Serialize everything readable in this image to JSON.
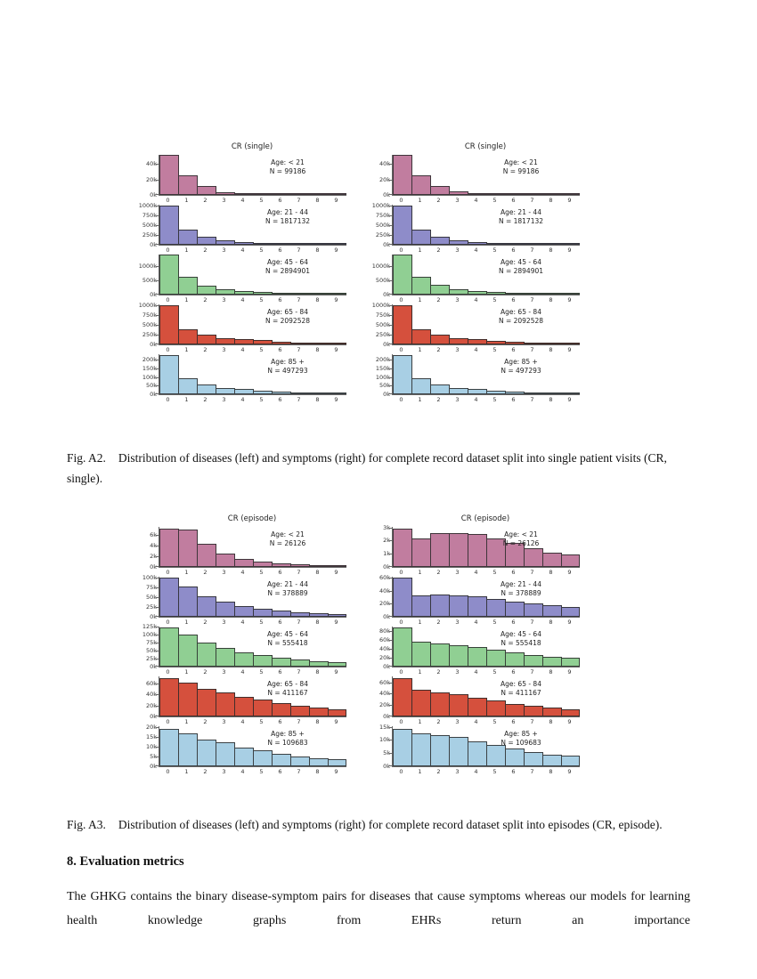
{
  "captions": {
    "a2": {
      "label": "Fig. A2.",
      "text": "Distribution of diseases (left) and symptoms (right) for complete record dataset split into single patient visits (CR, single)."
    },
    "a3": {
      "label": "Fig. A3.",
      "text": "Distribution of diseases (left) and symptoms (right) for complete record dataset split into episodes (CR, episode)."
    }
  },
  "section": {
    "heading": "8.  Evaluation metrics",
    "body": "The GHKG contains the binary disease-symptom pairs for diseases that cause symptoms whereas our models for learning health knowledge graphs from EHRs return an importance"
  },
  "chart_data": [
    {
      "id": "fig-a2",
      "type": "bar",
      "title": "CR (single)",
      "unit": "thousands",
      "x_labels": [
        "0",
        "1",
        "2",
        "3",
        "4",
        "5",
        "6",
        "7",
        "8",
        "9"
      ],
      "columns": [
        {
          "side": "diseases (left)",
          "panels": [
            {
              "age_label": "Age: < 21",
              "n_label": "N = 99186",
              "color": "#c17d9f",
              "ymax": 52,
              "yticks": [
                {
                  "v": 0,
                  "label": "0k"
                },
                {
                  "v": 20,
                  "label": "20k"
                },
                {
                  "v": 40,
                  "label": "40k"
                }
              ],
              "values": [
                52,
                25,
                11,
                4,
                1.6,
                0.9,
                0.5,
                0.3,
                0.2,
                0.1
              ]
            },
            {
              "age_label": "Age: 21 - 44",
              "n_label": "N = 1817132",
              "color": "#8e8cc9",
              "ymax": 1020,
              "yticks": [
                {
                  "v": 0,
                  "label": "0k"
                },
                {
                  "v": 250,
                  "label": "250k"
                },
                {
                  "v": 500,
                  "label": "500k"
                },
                {
                  "v": 750,
                  "label": "750k"
                },
                {
                  "v": 1000,
                  "label": "1000k"
                }
              ],
              "values": [
                1000,
                390,
                200,
                118,
                72,
                46,
                28,
                17,
                9,
                4
              ]
            },
            {
              "age_label": "Age: 45 - 64",
              "n_label": "N = 2894901",
              "color": "#90cf93",
              "ymax": 1400,
              "yticks": [
                {
                  "v": 0,
                  "label": "0k"
                },
                {
                  "v": 500,
                  "label": "500k"
                },
                {
                  "v": 1000,
                  "label": "1000k"
                }
              ],
              "values": [
                1400,
                610,
                320,
                198,
                130,
                90,
                58,
                36,
                20,
                10
              ]
            },
            {
              "age_label": "Age: 65 - 84",
              "n_label": "N = 2092528",
              "color": "#d5503d",
              "ymax": 1020,
              "yticks": [
                {
                  "v": 0,
                  "label": "0k"
                },
                {
                  "v": 250,
                  "label": "250k"
                },
                {
                  "v": 500,
                  "label": "500k"
                },
                {
                  "v": 750,
                  "label": "750k"
                },
                {
                  "v": 1000,
                  "label": "1000k"
                }
              ],
              "values": [
                995,
                390,
                245,
                165,
                132,
                102,
                70,
                48,
                29,
                17
              ]
            },
            {
              "age_label": "Age: 85 +",
              "n_label": "N = 497293",
              "color": "#a8cfe4",
              "ymax": 232,
              "yticks": [
                {
                  "v": 0,
                  "label": "0k"
                },
                {
                  "v": 50,
                  "label": "50k"
                },
                {
                  "v": 100,
                  "label": "100k"
                },
                {
                  "v": 150,
                  "label": "150k"
                },
                {
                  "v": 200,
                  "label": "200k"
                }
              ],
              "values": [
                228,
                92,
                58,
                38,
                30,
                22,
                17,
                12,
                8,
                5
              ]
            }
          ]
        },
        {
          "side": "symptoms (right)",
          "panels": [
            {
              "age_label": "Age: < 21",
              "n_label": "N = 99186",
              "color": "#c17d9f",
              "ymax": 52,
              "yticks": [
                {
                  "v": 0,
                  "label": "0k"
                },
                {
                  "v": 20,
                  "label": "20k"
                },
                {
                  "v": 40,
                  "label": "40k"
                }
              ],
              "values": [
                52,
                25,
                11,
                4.2,
                1.9,
                1.1,
                0.6,
                0.4,
                0.25,
                0.12
              ]
            },
            {
              "age_label": "Age: 21 - 44",
              "n_label": "N = 1817132",
              "color": "#8e8cc9",
              "ymax": 1020,
              "yticks": [
                {
                  "v": 0,
                  "label": "0k"
                },
                {
                  "v": 250,
                  "label": "250k"
                },
                {
                  "v": 500,
                  "label": "500k"
                },
                {
                  "v": 750,
                  "label": "750k"
                },
                {
                  "v": 1000,
                  "label": "1000k"
                }
              ],
              "values": [
                1000,
                395,
                205,
                122,
                76,
                50,
                31,
                19,
                11,
                5
              ]
            },
            {
              "age_label": "Age: 45 - 64",
              "n_label": "N = 2894901",
              "color": "#90cf93",
              "ymax": 1400,
              "yticks": [
                {
                  "v": 0,
                  "label": "0k"
                },
                {
                  "v": 500,
                  "label": "500k"
                },
                {
                  "v": 1000,
                  "label": "1000k"
                }
              ],
              "values": [
                1400,
                620,
                335,
                195,
                128,
                92,
                60,
                38,
                22,
                11
              ]
            },
            {
              "age_label": "Age: 65 - 84",
              "n_label": "N = 2092528",
              "color": "#d5503d",
              "ymax": 1020,
              "yticks": [
                {
                  "v": 0,
                  "label": "0k"
                },
                {
                  "v": 250,
                  "label": "250k"
                },
                {
                  "v": 500,
                  "label": "500k"
                },
                {
                  "v": 750,
                  "label": "750k"
                },
                {
                  "v": 1000,
                  "label": "1000k"
                }
              ],
              "values": [
                990,
                392,
                248,
                162,
                128,
                98,
                68,
                45,
                27,
                16
              ]
            },
            {
              "age_label": "Age: 85 +",
              "n_label": "N = 497293",
              "color": "#a8cfe4",
              "ymax": 232,
              "yticks": [
                {
                  "v": 0,
                  "label": "0k"
                },
                {
                  "v": 50,
                  "label": "50k"
                },
                {
                  "v": 100,
                  "label": "100k"
                },
                {
                  "v": 150,
                  "label": "150k"
                },
                {
                  "v": 200,
                  "label": "200k"
                }
              ],
              "values": [
                226,
                91,
                57,
                37,
                29,
                21,
                16,
                11,
                7,
                4.5
              ]
            }
          ]
        }
      ]
    },
    {
      "id": "fig-a3",
      "type": "bar",
      "title": "CR (episode)",
      "unit": "thousands",
      "x_labels": [
        "0",
        "1",
        "2",
        "3",
        "4",
        "5",
        "6",
        "7",
        "8",
        "9"
      ],
      "columns": [
        {
          "side": "diseases (left)",
          "panels": [
            {
              "age_label": "Age: < 21",
              "n_label": "N = 26126",
              "color": "#c17d9f",
              "ymax": 7.6,
              "yticks": [
                {
                  "v": 0,
                  "label": "0k"
                },
                {
                  "v": 2,
                  "label": "2k"
                },
                {
                  "v": 4,
                  "label": "4k"
                },
                {
                  "v": 6,
                  "label": "6k"
                }
              ],
              "values": [
                7.3,
                7.1,
                4.4,
                2.5,
                1.6,
                1.05,
                0.7,
                0.5,
                0.35,
                0.22
              ]
            },
            {
              "age_label": "Age: 21 - 44",
              "n_label": "N = 378889",
              "color": "#8e8cc9",
              "ymax": 103,
              "yticks": [
                {
                  "v": 0,
                  "label": "0k"
                },
                {
                  "v": 25,
                  "label": "25k"
                },
                {
                  "v": 50,
                  "label": "50k"
                },
                {
                  "v": 75,
                  "label": "75k"
                },
                {
                  "v": 100,
                  "label": "100k"
                }
              ],
              "values": [
                100,
                77,
                53,
                38,
                28,
                21,
                16,
                12.5,
                9.5,
                7
              ]
            },
            {
              "age_label": "Age: 45 - 64",
              "n_label": "N = 555418",
              "color": "#90cf93",
              "ymax": 125,
              "yticks": [
                {
                  "v": 0,
                  "label": "0k"
                },
                {
                  "v": 25,
                  "label": "25k"
                },
                {
                  "v": 50,
                  "label": "50k"
                },
                {
                  "v": 75,
                  "label": "75k"
                },
                {
                  "v": 100,
                  "label": "100k"
                },
                {
                  "v": 125,
                  "label": "125k"
                }
              ],
              "values": [
                121,
                100,
                76,
                57,
                45,
                37,
                28,
                23,
                18,
                14
              ]
            },
            {
              "age_label": "Age: 65 - 84",
              "n_label": "N = 411167",
              "color": "#d5503d",
              "ymax": 72.5,
              "yticks": [
                {
                  "v": 0,
                  "label": "0k"
                },
                {
                  "v": 20,
                  "label": "20k"
                },
                {
                  "v": 40,
                  "label": "40k"
                },
                {
                  "v": 60,
                  "label": "60k"
                }
              ],
              "values": [
                70,
                62,
                50,
                43,
                36,
                30,
                24,
                19.5,
                16,
                13.5
              ]
            },
            {
              "age_label": "Age: 85 +",
              "n_label": "N = 109683",
              "color": "#a8cfe4",
              "ymax": 20.3,
              "yticks": [
                {
                  "v": 0,
                  "label": "0k"
                },
                {
                  "v": 5,
                  "label": "5k"
                },
                {
                  "v": 10,
                  "label": "10k"
                },
                {
                  "v": 15,
                  "label": "15k"
                },
                {
                  "v": 20,
                  "label": "20k"
                }
              ],
              "values": [
                19,
                16.5,
                13.7,
                12,
                9.5,
                8,
                6.2,
                5,
                4,
                3.4
              ]
            }
          ]
        },
        {
          "side": "symptoms (right)",
          "panels": [
            {
              "age_label": "Age: < 21",
              "n_label": "N = 26126",
              "color": "#c17d9f",
              "ymax": 3.05,
              "yticks": [
                {
                  "v": 0,
                  "label": "0k"
                },
                {
                  "v": 1,
                  "label": "1k"
                },
                {
                  "v": 2,
                  "label": "2k"
                },
                {
                  "v": 3,
                  "label": "3k"
                }
              ],
              "values": [
                2.9,
                2.2,
                2.55,
                2.6,
                2.5,
                2.15,
                1.8,
                1.45,
                1.1,
                0.95
              ]
            },
            {
              "age_label": "Age: 21 - 44",
              "n_label": "N = 378889",
              "color": "#8e8cc9",
              "ymax": 62,
              "yticks": [
                {
                  "v": 0,
                  "label": "0k"
                },
                {
                  "v": 20,
                  "label": "20k"
                },
                {
                  "v": 40,
                  "label": "40k"
                },
                {
                  "v": 60,
                  "label": "60k"
                }
              ],
              "values": [
                60,
                33,
                34,
                33.5,
                31,
                28,
                23.5,
                20.5,
                17.5,
                15
              ]
            },
            {
              "age_label": "Age: 45 - 64",
              "n_label": "N = 555418",
              "color": "#90cf93",
              "ymax": 91,
              "yticks": [
                {
                  "v": 0,
                  "label": "0k"
                },
                {
                  "v": 20,
                  "label": "20k"
                },
                {
                  "v": 40,
                  "label": "40k"
                },
                {
                  "v": 60,
                  "label": "60k"
                },
                {
                  "v": 80,
                  "label": "80k"
                }
              ],
              "values": [
                88,
                57,
                53,
                48.5,
                44,
                38,
                32.5,
                27,
                22,
                19.5
              ]
            },
            {
              "age_label": "Age: 65 - 84",
              "n_label": "N = 411167",
              "color": "#d5503d",
              "ymax": 70.5,
              "yticks": [
                {
                  "v": 0,
                  "label": "0k"
                },
                {
                  "v": 20,
                  "label": "20k"
                },
                {
                  "v": 40,
                  "label": "40k"
                },
                {
                  "v": 60,
                  "label": "60k"
                }
              ],
              "values": [
                68,
                47,
                42.5,
                38.5,
                33,
                27.5,
                22.5,
                19,
                16,
                12.5
              ]
            },
            {
              "age_label": "Age: 85 +",
              "n_label": "N = 109683",
              "color": "#a8cfe4",
              "ymax": 15.2,
              "yticks": [
                {
                  "v": 0,
                  "label": "0k"
                },
                {
                  "v": 5,
                  "label": "5k"
                },
                {
                  "v": 10,
                  "label": "10k"
                },
                {
                  "v": 15,
                  "label": "15k"
                }
              ],
              "values": [
                14.3,
                12.4,
                11.9,
                11.2,
                9.6,
                8.1,
                6.6,
                5.4,
                4.4,
                3.9
              ]
            }
          ]
        }
      ]
    }
  ]
}
